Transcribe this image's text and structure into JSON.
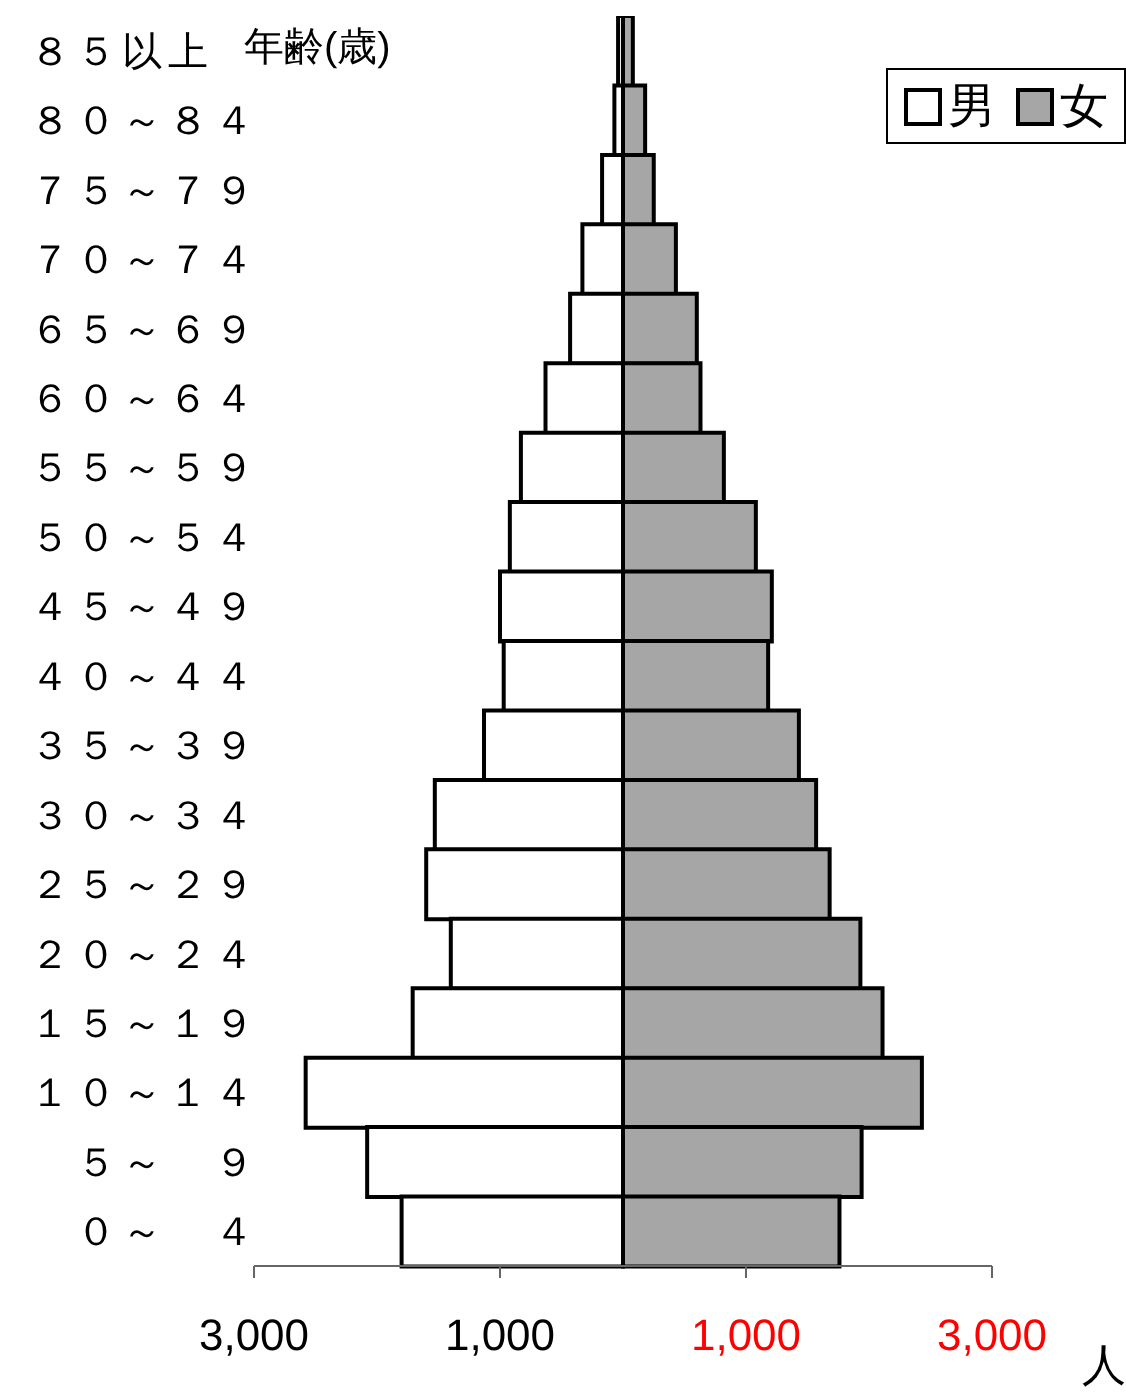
{
  "chart_data": {
    "type": "bar",
    "orientation": "horizontal",
    "stacked": true,
    "ylabel": "年齢(歳)",
    "xlabel": "人",
    "categories": [
      "８５以上",
      "８０～８４",
      "７５～７９",
      "７０～７４",
      "６５～６９",
      "６０～６４",
      "５５～５９",
      "５０～５４",
      "４５～４９",
      "４０～４４",
      "３５～３９",
      "３０～３４",
      "２５～２９",
      "２０～２４",
      "１５～１９",
      "１０～１４",
      "　５～　９",
      "　０～　４"
    ],
    "series": [
      {
        "name": "男",
        "color": "#ffffff",
        "values": [
          -40,
          -70,
          -170,
          -330,
          -430,
          -630,
          -830,
          -920,
          -1000,
          -970,
          -1130,
          -1530,
          -1600,
          -1400,
          -1710,
          -2580,
          -2080,
          -1800
        ]
      },
      {
        "name": "女",
        "color": "#a6a6a6",
        "values": [
          80,
          180,
          250,
          430,
          600,
          630,
          820,
          1080,
          1210,
          1180,
          1430,
          1570,
          1680,
          1930,
          2110,
          2430,
          1940,
          1760
        ]
      }
    ],
    "xlim": [
      -3000,
      3000
    ],
    "xticks": [
      {
        "value": -3000,
        "label": "3,000"
      },
      {
        "value": -1000,
        "label": "1,000"
      },
      {
        "value": 1000,
        "label": "1,000"
      },
      {
        "value": 3000,
        "label": "3,000"
      }
    ],
    "legend": "top right",
    "grid": false
  }
}
